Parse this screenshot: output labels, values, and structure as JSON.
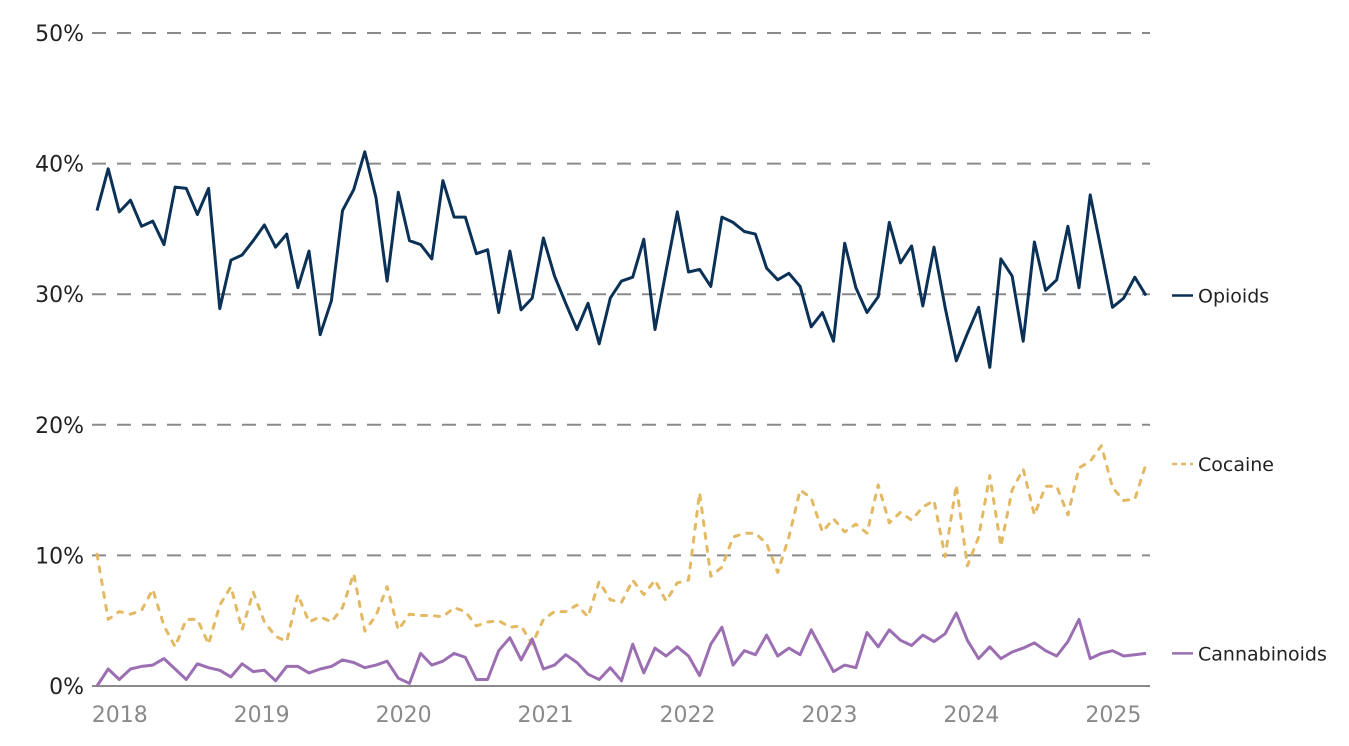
{
  "chart_data": {
    "type": "line",
    "title": "",
    "xlabel": "",
    "ylabel": "",
    "ylim": [
      0,
      50
    ],
    "xlim": [
      2017.84,
      2025.23
    ],
    "y_ticks": [
      "0%",
      "10%",
      "20%",
      "30%",
      "40%",
      "50%"
    ],
    "y_tick_values": [
      0,
      10,
      20,
      30,
      40,
      50
    ],
    "x_ticks": [
      "2018",
      "2019",
      "2020",
      "2021",
      "2022",
      "2023",
      "2024",
      "2025"
    ],
    "x_tick_values": [
      2018,
      2019,
      2020,
      2021,
      2022,
      2023,
      2024,
      2025
    ],
    "grid": "horizontal dashed",
    "legend": "right, inline at line ends",
    "series": [
      {
        "name": "Opioids",
        "color": "#0b3157",
        "style": "solid",
        "values": [
          36.4,
          39.6,
          36.3,
          37.2,
          35.2,
          35.6,
          33.8,
          38.2,
          38.1,
          36.1,
          38.1,
          28.9,
          32.6,
          33.0,
          34.1,
          35.3,
          33.6,
          34.6,
          30.5,
          33.3,
          26.9,
          29.5,
          36.4,
          38.0,
          40.9,
          37.4,
          31.0,
          37.8,
          34.1,
          33.8,
          32.7,
          38.7,
          35.9,
          35.9,
          33.1,
          33.4,
          28.6,
          33.3,
          28.8,
          29.7,
          34.3,
          31.4,
          29.3,
          27.3,
          29.3,
          26.2,
          29.7,
          31.0,
          31.3,
          34.2,
          27.3,
          31.8,
          36.3,
          31.7,
          31.9,
          30.6,
          35.9,
          35.5,
          34.8,
          34.6,
          32.0,
          31.1,
          31.6,
          30.6,
          27.5,
          28.6,
          26.4,
          33.9,
          30.5,
          28.6,
          29.8,
          35.5,
          32.4,
          33.7,
          29.1,
          33.6,
          29.0,
          24.9,
          27.0,
          29.0,
          24.4,
          32.7,
          31.4,
          26.4,
          34.0,
          30.3,
          31.1,
          35.2,
          30.5,
          37.6,
          33.3,
          29.0,
          29.7,
          31.3,
          29.9
        ]
      },
      {
        "name": "Cocaine",
        "color": "#e3b963",
        "style": "dashed",
        "values": [
          10.1,
          5.1,
          5.7,
          5.5,
          5.8,
          7.4,
          4.6,
          3.0,
          5.1,
          5.1,
          3.2,
          6.2,
          7.6,
          4.3,
          7.2,
          4.9,
          3.8,
          3.4,
          7.0,
          4.9,
          5.3,
          4.9,
          6.0,
          8.6,
          4.2,
          5.4,
          7.6,
          4.3,
          5.5,
          5.4,
          5.4,
          5.3,
          6.0,
          5.7,
          4.6,
          4.9,
          5.0,
          4.5,
          4.6,
          3.2,
          5.1,
          5.7,
          5.7,
          6.2,
          5.3,
          8.0,
          6.6,
          6.4,
          8.1,
          7.0,
          8.1,
          6.5,
          7.9,
          8.1,
          14.8,
          8.4,
          9.1,
          11.4,
          11.7,
          11.7,
          10.9,
          8.7,
          11.4,
          15.0,
          14.4,
          11.8,
          12.8,
          11.8,
          12.4,
          11.7,
          15.4,
          12.5,
          13.3,
          12.7,
          13.7,
          14.2,
          9.9,
          15.4,
          9.2,
          11.4,
          16.1,
          10.7,
          15.0,
          16.6,
          13.1,
          15.3,
          15.3,
          13.1,
          16.7,
          17.2,
          18.4,
          15.2,
          14.2,
          14.3,
          17.0
        ]
      },
      {
        "name": "Cannabinoids",
        "color": "#9b6fb2",
        "style": "solid",
        "values": [
          0.0,
          1.3,
          0.5,
          1.3,
          1.5,
          1.6,
          2.1,
          1.3,
          0.5,
          1.7,
          1.4,
          1.2,
          0.7,
          1.7,
          1.1,
          1.2,
          0.4,
          1.5,
          1.5,
          1.0,
          1.3,
          1.5,
          2.0,
          1.8,
          1.4,
          1.6,
          1.9,
          0.6,
          0.2,
          2.5,
          1.6,
          1.9,
          2.5,
          2.2,
          0.5,
          0.5,
          2.7,
          3.7,
          2.0,
          3.6,
          1.3,
          1.6,
          2.4,
          1.8,
          0.9,
          0.5,
          1.4,
          0.4,
          3.2,
          1.0,
          2.9,
          2.3,
          3.0,
          2.3,
          0.8,
          3.2,
          4.5,
          1.6,
          2.7,
          2.4,
          3.9,
          2.3,
          2.9,
          2.4,
          4.3,
          2.7,
          1.1,
          1.6,
          1.4,
          4.1,
          3.0,
          4.3,
          3.5,
          3.1,
          3.9,
          3.4,
          4.0,
          5.6,
          3.5,
          2.1,
          3.0,
          2.1,
          2.6,
          2.9,
          3.3,
          2.7,
          2.3,
          3.4,
          5.1,
          2.1,
          2.5,
          2.7,
          2.3,
          2.4,
          2.5
        ]
      }
    ]
  }
}
